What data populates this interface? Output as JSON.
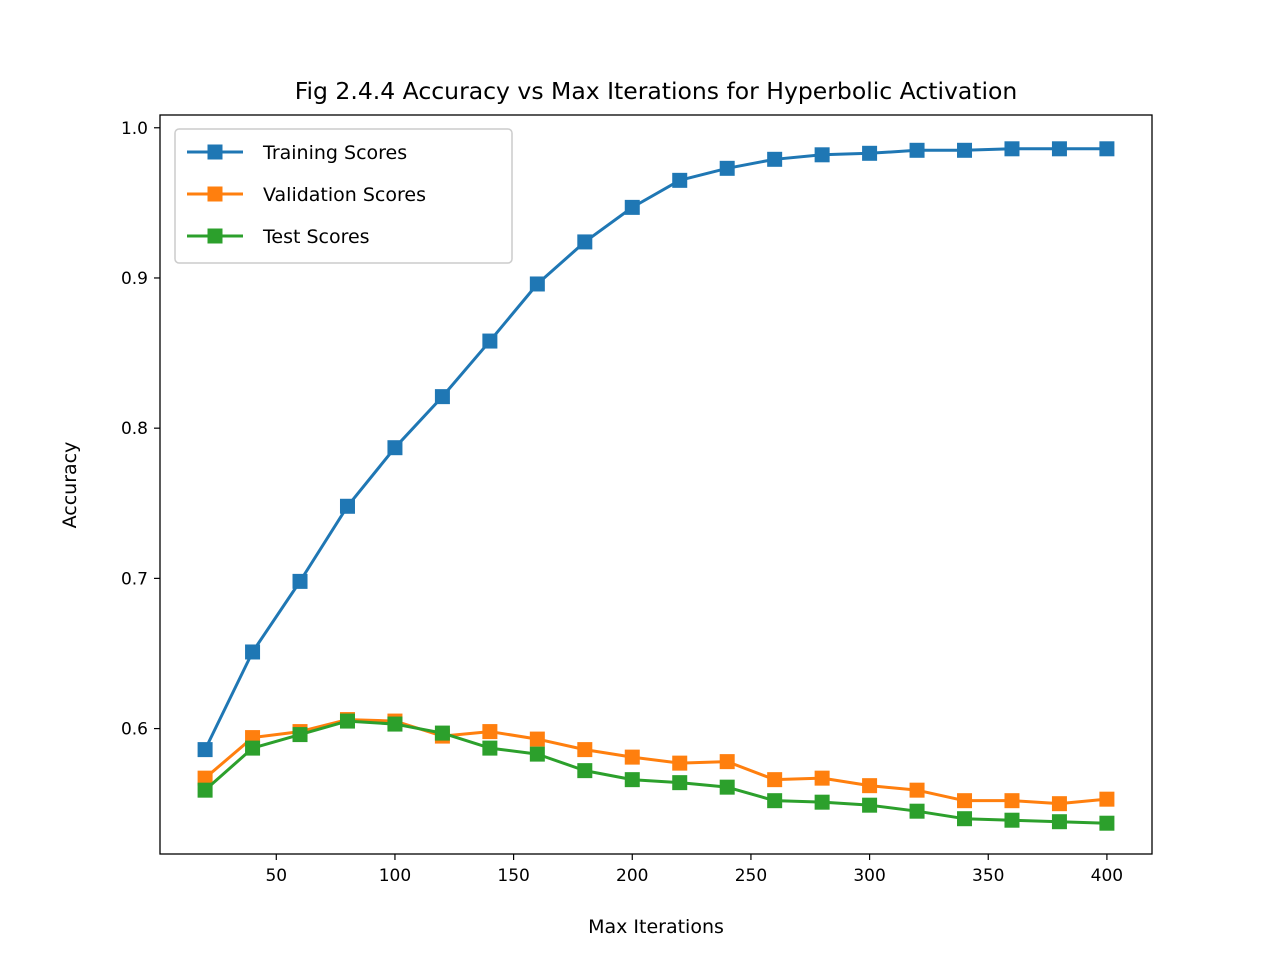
{
  "chart_data": {
    "type": "line",
    "title": "Fig 2.4.4 Accuracy vs Max Iterations for Hyperbolic Activation",
    "xlabel": "Max Iterations",
    "ylabel": "Accuracy",
    "xlim": [
      1,
      419
    ],
    "ylim": [
      0.5165,
      1.0085
    ],
    "xticks": [
      50,
      100,
      150,
      200,
      250,
      300,
      350,
      400
    ],
    "xtick_labels": [
      "50",
      "100",
      "150",
      "200",
      "250",
      "300",
      "350",
      "400"
    ],
    "yticks": [
      0.6,
      0.7,
      0.8,
      0.9,
      1.0
    ],
    "ytick_labels": [
      "0.6",
      "0.7",
      "0.8",
      "0.9",
      "1.0"
    ],
    "grid": false,
    "legend_position": "upper-left",
    "x": [
      20,
      40,
      60,
      80,
      100,
      120,
      140,
      160,
      180,
      200,
      220,
      240,
      260,
      280,
      300,
      320,
      340,
      360,
      380,
      400
    ],
    "series": [
      {
        "name": "Training Scores",
        "color": "#1f77b4",
        "marker": "square",
        "values": [
          0.586,
          0.651,
          0.698,
          0.748,
          0.787,
          0.821,
          0.858,
          0.896,
          0.924,
          0.947,
          0.965,
          0.973,
          0.979,
          0.982,
          0.983,
          0.985,
          0.985,
          0.986,
          0.986,
          0.986
        ]
      },
      {
        "name": "Validation Scores",
        "color": "#ff7f0e",
        "marker": "square",
        "values": [
          0.567,
          0.594,
          0.598,
          0.606,
          0.605,
          0.595,
          0.598,
          0.593,
          0.586,
          0.581,
          0.577,
          0.578,
          0.566,
          0.567,
          0.562,
          0.559,
          0.552,
          0.552,
          0.55,
          0.553
        ]
      },
      {
        "name": "Test Scores",
        "color": "#2ca02c",
        "marker": "square",
        "values": [
          0.559,
          0.587,
          0.596,
          0.605,
          0.603,
          0.597,
          0.587,
          0.583,
          0.572,
          0.566,
          0.564,
          0.561,
          0.552,
          0.551,
          0.549,
          0.545,
          0.54,
          0.539,
          0.538,
          0.537
        ]
      }
    ]
  }
}
